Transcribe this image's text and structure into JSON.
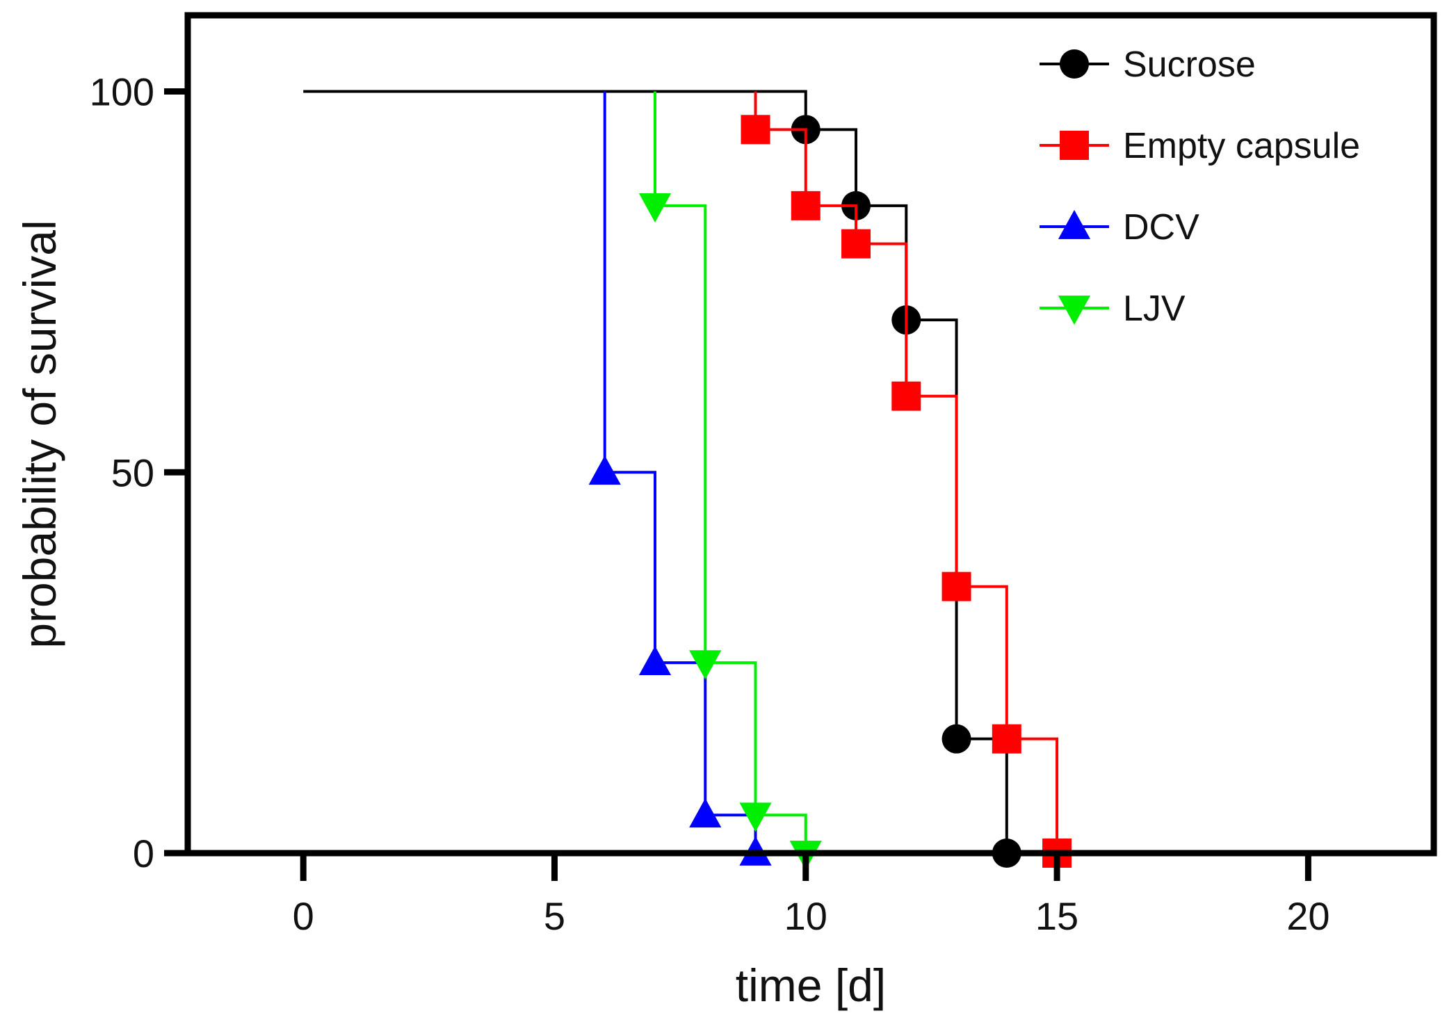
{
  "chart_data": {
    "type": "line",
    "subtype": "kaplan-meier step survival curves",
    "title": "",
    "xlabel": "time [d]",
    "ylabel": "probability of survival",
    "xlim": [
      -2.3,
      22.5
    ],
    "ylim": [
      0,
      110
    ],
    "xticks": [
      0,
      5,
      10,
      15,
      20
    ],
    "yticks": [
      0,
      50,
      100
    ],
    "grid": false,
    "legend_position": "top-right",
    "series": [
      {
        "name": "Sucrose",
        "color": "#000000",
        "marker": "circle",
        "steps": [
          [
            0,
            100
          ],
          [
            10,
            95
          ],
          [
            11,
            85
          ],
          [
            12,
            70
          ],
          [
            13,
            15
          ],
          [
            14,
            0
          ]
        ],
        "markers": [
          [
            10,
            95
          ],
          [
            11,
            85
          ],
          [
            12,
            70
          ],
          [
            13,
            15
          ],
          [
            14,
            0
          ]
        ]
      },
      {
        "name": "Empty capsule",
        "color": "#ff0000",
        "marker": "square",
        "steps": [
          [
            9,
            100
          ],
          [
            9,
            95
          ],
          [
            10,
            85
          ],
          [
            11,
            80
          ],
          [
            12,
            60
          ],
          [
            13,
            35
          ],
          [
            14,
            15
          ],
          [
            15,
            0
          ]
        ],
        "markers": [
          [
            9,
            95
          ],
          [
            10,
            85
          ],
          [
            11,
            80
          ],
          [
            12,
            60
          ],
          [
            13,
            35
          ],
          [
            14,
            15
          ],
          [
            15,
            0
          ]
        ]
      },
      {
        "name": "DCV",
        "color": "#0000ff",
        "marker": "triangle-up",
        "steps": [
          [
            6,
            100
          ],
          [
            6,
            50
          ],
          [
            7,
            25
          ],
          [
            8,
            5
          ],
          [
            9,
            0
          ]
        ],
        "markers": [
          [
            6,
            50
          ],
          [
            7,
            25
          ],
          [
            8,
            5
          ],
          [
            9,
            0
          ]
        ]
      },
      {
        "name": "LJV",
        "color": "#00ee00",
        "marker": "triangle-down",
        "steps": [
          [
            7,
            100
          ],
          [
            7,
            85
          ],
          [
            8,
            25
          ],
          [
            9,
            5
          ],
          [
            10,
            0
          ]
        ],
        "markers": [
          [
            7,
            85
          ],
          [
            8,
            25
          ],
          [
            9,
            5
          ],
          [
            10,
            0
          ]
        ]
      }
    ]
  }
}
